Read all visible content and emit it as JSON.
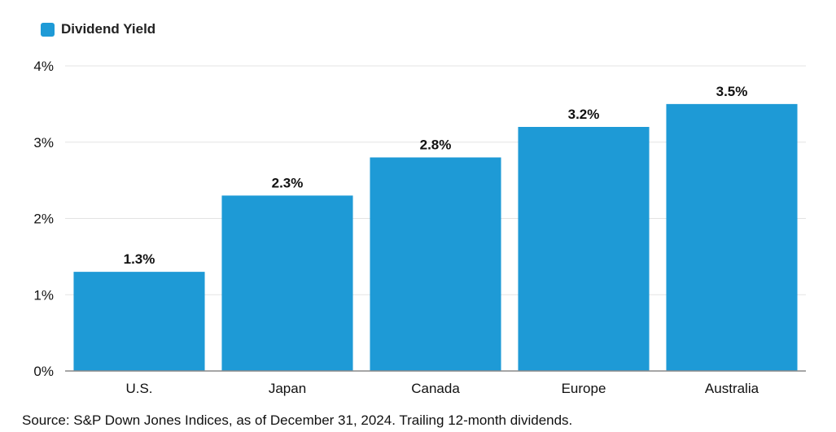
{
  "legend": {
    "label": "Dividend Yield"
  },
  "source_note": "Source: S&P Down Jones Indices, as of December 31, 2024. Trailing 12-month dividends.",
  "colors": {
    "bar": "#1e9ad6",
    "grid": "#e3e3e3",
    "axis": "#888888"
  },
  "chart_data": {
    "type": "bar",
    "categories": [
      "U.S.",
      "Japan",
      "Canada",
      "Europe",
      "Australia"
    ],
    "series": [
      {
        "name": "Dividend Yield",
        "values": [
          1.3,
          2.3,
          2.8,
          3.2,
          3.5
        ]
      }
    ],
    "data_labels": [
      "1.3%",
      "2.3%",
      "2.8%",
      "3.2%",
      "3.5%"
    ],
    "y_ticks": [
      0,
      1,
      2,
      3,
      4
    ],
    "y_tick_labels": [
      "0%",
      "1%",
      "2%",
      "3%",
      "4%"
    ],
    "ylim": [
      0,
      4
    ],
    "grid": true,
    "legend_position": "top-left",
    "title": "",
    "xlabel": "",
    "ylabel": ""
  }
}
